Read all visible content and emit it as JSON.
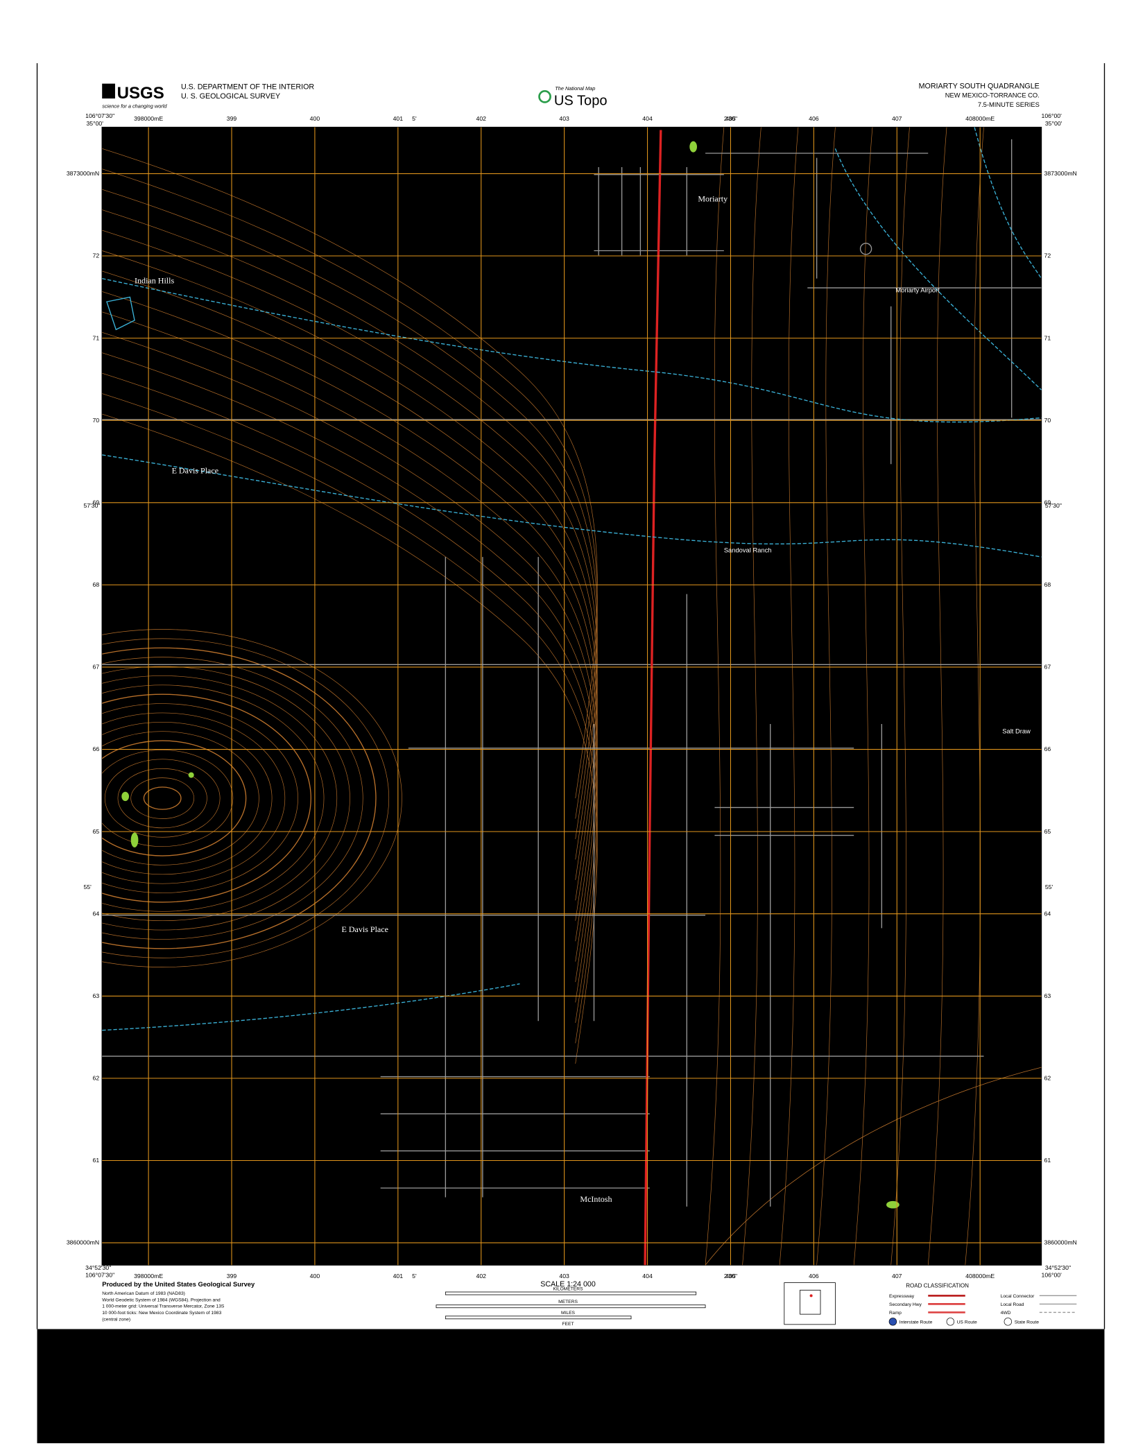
{
  "header": {
    "logo": "USGS",
    "tagline": "science for a changing world",
    "agency_line1": "U.S. DEPARTMENT OF THE INTERIOR",
    "agency_line2": "U. S. GEOLOGICAL SURVEY",
    "national_map": "The National Map",
    "us_topo": "US Topo",
    "quad_title": "MORIARTY SOUTH QUADRANGLE",
    "state_county": "NEW MEXICO-TORRANCE CO.",
    "series": "7.5-MINUTE SERIES"
  },
  "corners": {
    "nw_lon": "106°07'30\"",
    "nw_lat": "35°00'",
    "ne_lon": "106°00'",
    "ne_lat": "35°00'",
    "sw_lat": "34°52'30\"",
    "sw_lon": "106°07'30\"",
    "se_lat": "34°52'30\"",
    "se_lon": "106°00'",
    "mid_lat": "57'30\"",
    "lat_55": "55'",
    "lon_5": "5'",
    "lon_230": "2'30\""
  },
  "eastings": [
    "398000mE",
    "399",
    "400",
    "401",
    "402",
    "403",
    "404",
    "405",
    "406",
    "407",
    "408000mE"
  ],
  "northings": [
    "3873000mN",
    "72",
    "71",
    "70",
    "69",
    "68",
    "67",
    "66",
    "65",
    "64",
    "63",
    "62",
    "61",
    "3860000mN"
  ],
  "places": {
    "moriarty": "Moriarty",
    "indian_hills": "Indian Hills",
    "airport": "Moriarty Airport",
    "davis_n": "E Davis Place",
    "davis_s": "E Davis Place",
    "mcintosh": "McIntosh",
    "salt_draw": "Salt Draw",
    "sandoval": "Sandoval Ranch"
  },
  "footer": {
    "produced_by": "Produced by the United States Geological Survey",
    "datum_notes": [
      "North American Datum of 1983 (NAD83)",
      "World Geodetic System of 1984 (WGS84). Projection and",
      "1 000-meter grid: Universal Transverse Mercator, Zone 13S",
      "10 000-foot ticks: New Mexico Coordinate System of 1983",
      "(central zone)"
    ],
    "scale": "SCALE 1:24 000",
    "scale_units": [
      "KILOMETERS",
      "METERS",
      "MILES",
      "FEET"
    ],
    "road_classification": "ROAD CLASSIFICATION",
    "road_types": [
      "Expressway",
      "Secondary Hwy",
      "Ramp",
      "Local Connector",
      "Local Road",
      "4WD"
    ],
    "route_types": [
      "Interstate Route",
      "US Route",
      "State Route"
    ]
  }
}
